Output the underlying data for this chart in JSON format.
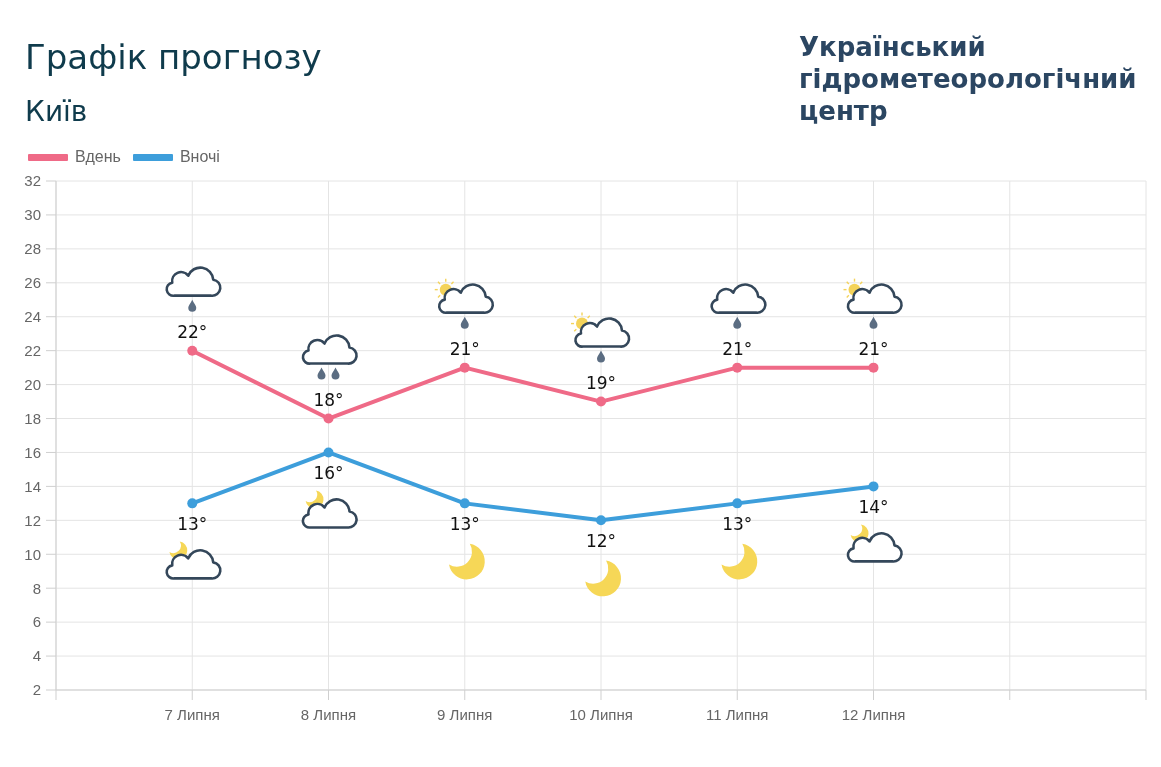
{
  "chart_data": {
    "type": "line",
    "title": "Графік прогнозу",
    "subtitle": "Київ",
    "annotations": [
      "Український гідрометеорологічний центр"
    ],
    "categories": [
      null,
      "7 Липня",
      "8 Липня",
      "9 Липня",
      "10 Липня",
      "11 Липня",
      "12 Липня",
      null,
      null
    ],
    "series": [
      {
        "name": "Вдень",
        "color": "#ef6a87",
        "values": [
          null,
          22,
          18,
          21,
          19,
          21,
          21,
          null,
          null
        ],
        "value_labels": [
          null,
          "22°",
          "18°",
          "21°",
          "19°",
          "21°",
          "21°",
          null,
          null
        ]
      },
      {
        "name": "Вночі",
        "color": "#3d9edb",
        "values": [
          null,
          13,
          16,
          13,
          12,
          13,
          14,
          null,
          null
        ],
        "value_labels": [
          null,
          "13°",
          "16°",
          "13°",
          "12°",
          "13°",
          "14°",
          null,
          null
        ]
      }
    ],
    "ylim": [
      2,
      32
    ],
    "yticks": [
      2,
      4,
      6,
      8,
      10,
      12,
      14,
      16,
      18,
      20,
      22,
      24,
      26,
      28,
      30,
      32
    ],
    "grid": true,
    "legend": "top left",
    "marker": "circle",
    "line_style": "solid"
  }
}
